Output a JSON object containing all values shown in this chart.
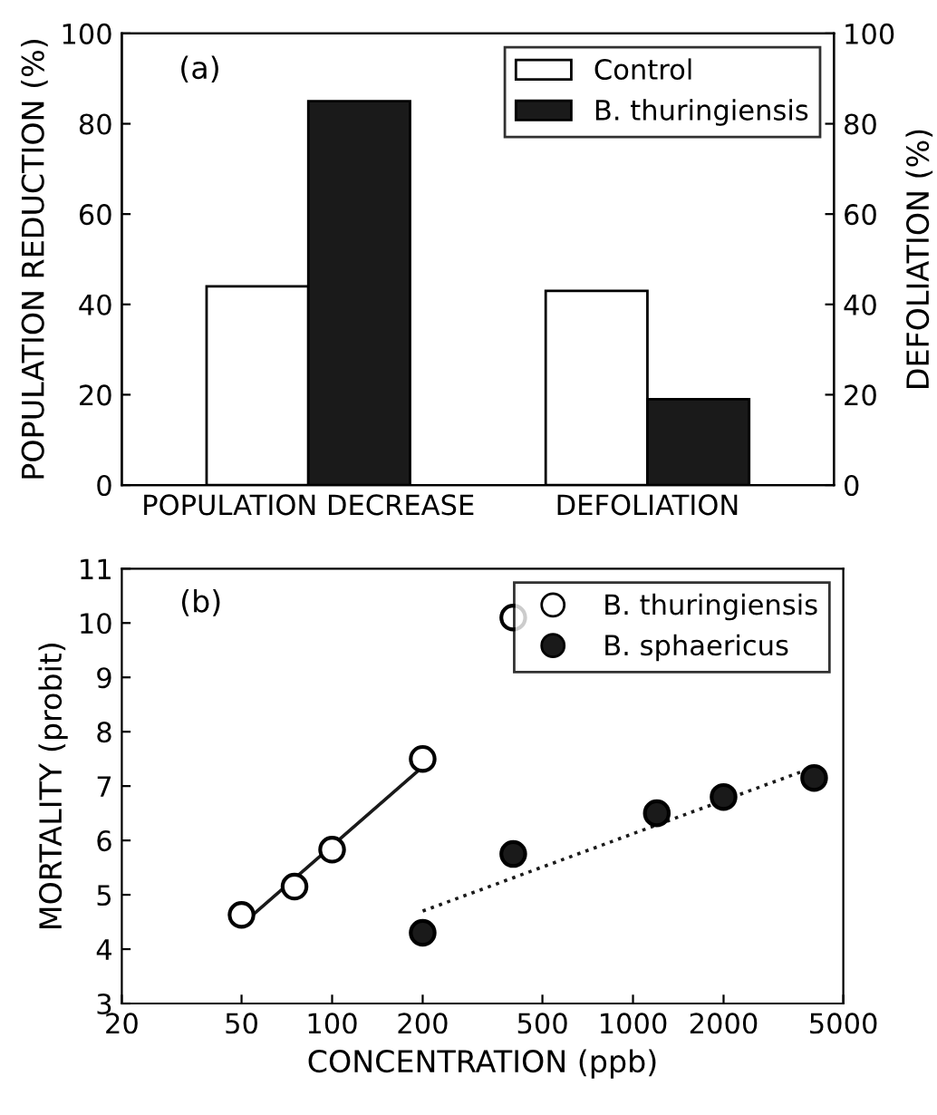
{
  "chart_data": [
    {
      "type": "bar",
      "ylabel": "POPULATION REDUCTION (%)",
      "y2label": "DEFOLIATION (%)",
      "annotations": [
        "(a)"
      ],
      "categories": [
        "POPULATION DECREASE",
        "DEFOLIATION"
      ],
      "series": [
        {
          "name": "Control",
          "color": "#ffffff",
          "values": [
            44,
            43
          ]
        },
        {
          "name": "B. thuringiensis",
          "color": "#1a1a1a",
          "values": [
            85,
            19
          ]
        }
      ],
      "ylim": [
        0,
        100
      ],
      "yticks": [
        0,
        20,
        40,
        60,
        80,
        100
      ],
      "y2lim": [
        0,
        100
      ],
      "y2ticks": [
        0,
        20,
        40,
        60,
        80,
        100
      ],
      "grid": false,
      "legend": "top right"
    },
    {
      "type": "scatter",
      "xlabel": "CONCENTRATION (ppb)",
      "ylabel": "MORTALITY (probit)",
      "annotations": [
        "(b)"
      ],
      "series": [
        {
          "name": "B. thuringiensis",
          "color": "#ffffff",
          "marker": "circle",
          "x": [
            50,
            75,
            100,
            200,
            400
          ],
          "values": [
            4.63,
            5.15,
            5.83,
            7.5,
            10.1
          ]
        },
        {
          "name": "B. sphaericus",
          "color": "#1a1a1a",
          "marker": "circle",
          "x": [
            200,
            400,
            1200,
            2000,
            4000
          ],
          "values": [
            4.3,
            5.75,
            6.5,
            6.8,
            7.15
          ]
        },
        {
          "type": "line",
          "color": "#1a1a1a",
          "line_style": "solid",
          "marker": "none",
          "x": [
            50,
            195
          ],
          "values": [
            4.45,
            7.3
          ]
        },
        {
          "type": "line",
          "color": "#1a1a1a",
          "line_style": "dotted",
          "marker": "none",
          "x": [
            200,
            4000
          ],
          "values": [
            4.7,
            7.35
          ]
        }
      ],
      "log": "x",
      "xlim": [
        20,
        5000
      ],
      "xticks": [
        20,
        50,
        100,
        200,
        500,
        1000,
        2000,
        5000
      ],
      "ylim": [
        3,
        11
      ],
      "yticks": [
        3,
        4,
        5,
        6,
        7,
        8,
        9,
        10,
        11
      ],
      "grid": false,
      "legend": "top right"
    }
  ]
}
